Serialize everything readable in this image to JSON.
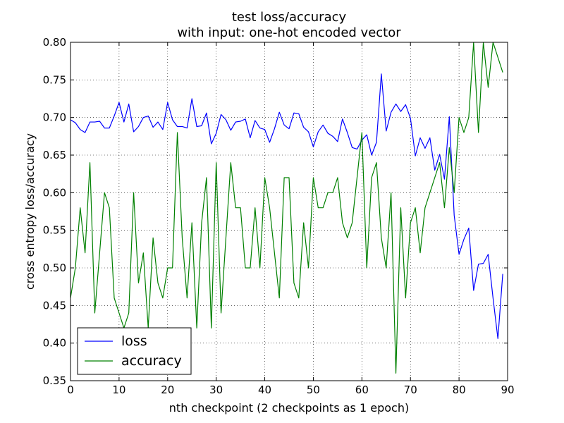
{
  "chart_data": {
    "type": "line",
    "title": "test loss/accuracy",
    "subtitle": "with input: one-hot encoded vector",
    "xlabel": "nth checkpoint (2 checkpoints as 1 epoch)",
    "ylabel": "cross entropy loss/accuracy",
    "xlim": [
      0,
      90
    ],
    "ylim": [
      0.35,
      0.8
    ],
    "xticks": [
      0,
      10,
      20,
      30,
      40,
      50,
      60,
      70,
      80,
      90
    ],
    "yticks": [
      0.35,
      0.4,
      0.45,
      0.5,
      0.55,
      0.6,
      0.65,
      0.7,
      0.75,
      0.8
    ],
    "xtick_labels": [
      "0",
      "10",
      "20",
      "30",
      "40",
      "50",
      "60",
      "70",
      "80",
      "90"
    ],
    "ytick_labels": [
      "0.35",
      "0.40",
      "0.45",
      "0.50",
      "0.55",
      "0.60",
      "0.65",
      "0.70",
      "0.75",
      "0.80"
    ],
    "grid": true,
    "legend_position": "lower-left",
    "series": [
      {
        "name": "loss",
        "color": "#0000ff",
        "x": [
          0,
          1,
          2,
          3,
          4,
          5,
          6,
          7,
          8,
          9,
          10,
          11,
          12,
          13,
          14,
          15,
          16,
          17,
          18,
          19,
          20,
          21,
          22,
          23,
          24,
          25,
          26,
          27,
          28,
          29,
          30,
          31,
          32,
          33,
          34,
          35,
          36,
          37,
          38,
          39,
          40,
          41,
          42,
          43,
          44,
          45,
          46,
          47,
          48,
          49,
          50,
          51,
          52,
          53,
          54,
          55,
          56,
          57,
          58,
          59,
          60,
          61,
          62,
          63,
          64,
          65,
          66,
          67,
          68,
          69,
          70,
          71,
          72,
          73,
          74,
          75,
          76,
          77,
          78,
          79,
          80,
          81,
          82,
          83,
          84,
          85,
          86,
          87,
          88,
          89
        ],
        "values": [
          0.697,
          0.693,
          0.684,
          0.68,
          0.694,
          0.694,
          0.695,
          0.686,
          0.686,
          0.702,
          0.72,
          0.694,
          0.718,
          0.681,
          0.688,
          0.7,
          0.702,
          0.687,
          0.694,
          0.684,
          0.72,
          0.697,
          0.688,
          0.688,
          0.686,
          0.725,
          0.688,
          0.689,
          0.706,
          0.665,
          0.679,
          0.704,
          0.697,
          0.683,
          0.694,
          0.695,
          0.698,
          0.673,
          0.696,
          0.686,
          0.684,
          0.667,
          0.685,
          0.707,
          0.69,
          0.685,
          0.706,
          0.705,
          0.687,
          0.681,
          0.661,
          0.681,
          0.69,
          0.679,
          0.675,
          0.668,
          0.698,
          0.68,
          0.66,
          0.658,
          0.67,
          0.677,
          0.65,
          0.667,
          0.758,
          0.682,
          0.707,
          0.718,
          0.708,
          0.717,
          0.699,
          0.649,
          0.673,
          0.659,
          0.673,
          0.63,
          0.651,
          0.618,
          0.701,
          0.57,
          0.518,
          0.538,
          0.553,
          0.47,
          0.505,
          0.506,
          0.518,
          0.46,
          0.406,
          0.492
        ]
      },
      {
        "name": "accuracy",
        "color": "#008000",
        "x": [
          0,
          1,
          2,
          3,
          4,
          5,
          6,
          7,
          8,
          9,
          10,
          11,
          12,
          13,
          14,
          15,
          16,
          17,
          18,
          19,
          20,
          21,
          22,
          23,
          24,
          25,
          26,
          27,
          28,
          29,
          30,
          31,
          32,
          33,
          34,
          35,
          36,
          37,
          38,
          39,
          40,
          41,
          42,
          43,
          44,
          45,
          46,
          47,
          48,
          49,
          50,
          51,
          52,
          53,
          54,
          55,
          56,
          57,
          58,
          59,
          60,
          61,
          62,
          63,
          64,
          65,
          66,
          67,
          68,
          69,
          70,
          71,
          72,
          73,
          74,
          75,
          76,
          77,
          78,
          79,
          80,
          81,
          82,
          83,
          84,
          85,
          86,
          87,
          88,
          89
        ],
        "values": [
          0.46,
          0.5,
          0.58,
          0.52,
          0.64,
          0.44,
          0.52,
          0.6,
          0.58,
          0.46,
          0.44,
          0.42,
          0.44,
          0.6,
          0.48,
          0.52,
          0.42,
          0.54,
          0.48,
          0.46,
          0.5,
          0.5,
          0.68,
          0.54,
          0.46,
          0.56,
          0.42,
          0.56,
          0.62,
          0.42,
          0.64,
          0.44,
          0.54,
          0.64,
          0.58,
          0.58,
          0.5,
          0.5,
          0.58,
          0.5,
          0.62,
          0.58,
          0.52,
          0.46,
          0.62,
          0.62,
          0.48,
          0.46,
          0.56,
          0.5,
          0.62,
          0.58,
          0.58,
          0.6,
          0.6,
          0.62,
          0.56,
          0.54,
          0.56,
          0.62,
          0.68,
          0.5,
          0.62,
          0.64,
          0.54,
          0.5,
          0.6,
          0.36,
          0.58,
          0.46,
          0.56,
          0.58,
          0.52,
          0.58,
          0.6,
          0.62,
          0.64,
          0.58,
          0.66,
          0.6,
          0.7,
          0.68,
          0.7,
          0.8,
          0.68,
          0.8,
          0.74,
          0.8,
          0.78,
          0.76
        ]
      }
    ]
  }
}
